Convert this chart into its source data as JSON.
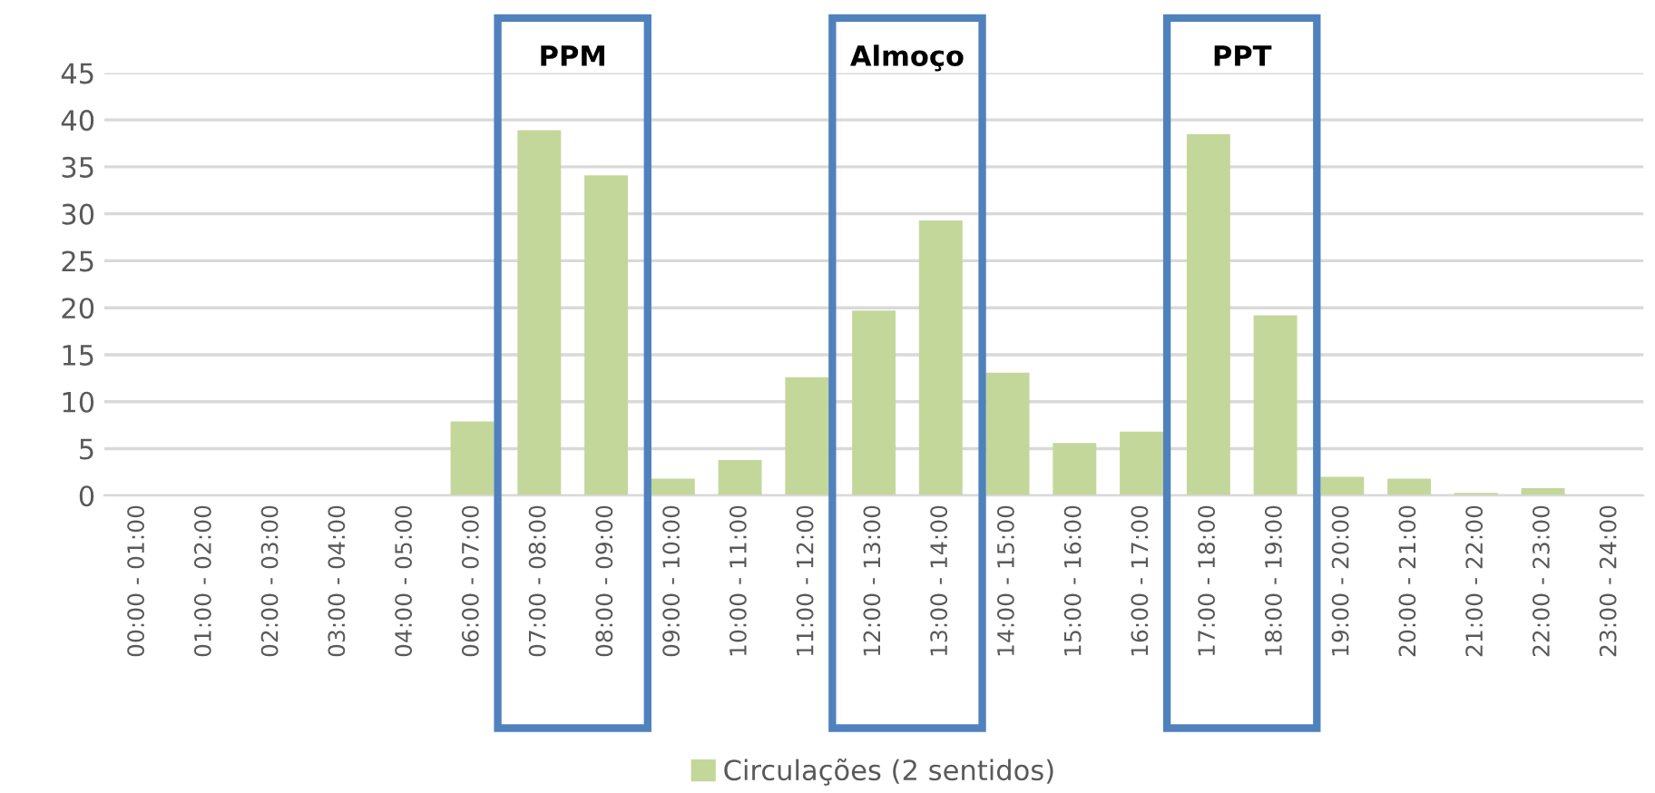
{
  "chart_data": {
    "type": "bar",
    "categories": [
      "00:00 - 01:00",
      "01:00 - 02:00",
      "02:00 - 03:00",
      "03:00 - 04:00",
      "04:00 - 05:00",
      "06:00 - 07:00",
      "07:00 - 08:00",
      "08:00 - 09:00",
      "09:00 - 10:00",
      "10:00 - 11:00",
      "11:00 - 12:00",
      "12:00 - 13:00",
      "13:00 - 14:00",
      "14:00 - 15:00",
      "15:00 - 16:00",
      "16:00 - 17:00",
      "17:00 - 18:00",
      "18:00 - 19:00",
      "19:00 - 20:00",
      "20:00 - 21:00",
      "21:00 - 22:00",
      "22:00 - 23:00",
      "23:00 - 24:00"
    ],
    "series": [
      {
        "name": "Circulações (2 sentidos)",
        "color": "#c4d79b",
        "values": [
          0,
          0,
          0,
          0,
          0,
          7.9,
          38.9,
          34.1,
          1.8,
          3.8,
          12.6,
          19.7,
          29.3,
          13.1,
          5.6,
          6.8,
          38.5,
          19.2,
          2.0,
          1.8,
          0.3,
          0.8,
          0
        ]
      }
    ],
    "ylim": [
      0,
      45
    ],
    "yticks": [
      0,
      5,
      10,
      15,
      20,
      25,
      30,
      35,
      40,
      45
    ],
    "grid": "y",
    "legend": "bottom",
    "annotations": [
      "PPM",
      "Almoço",
      "PPT"
    ]
  }
}
